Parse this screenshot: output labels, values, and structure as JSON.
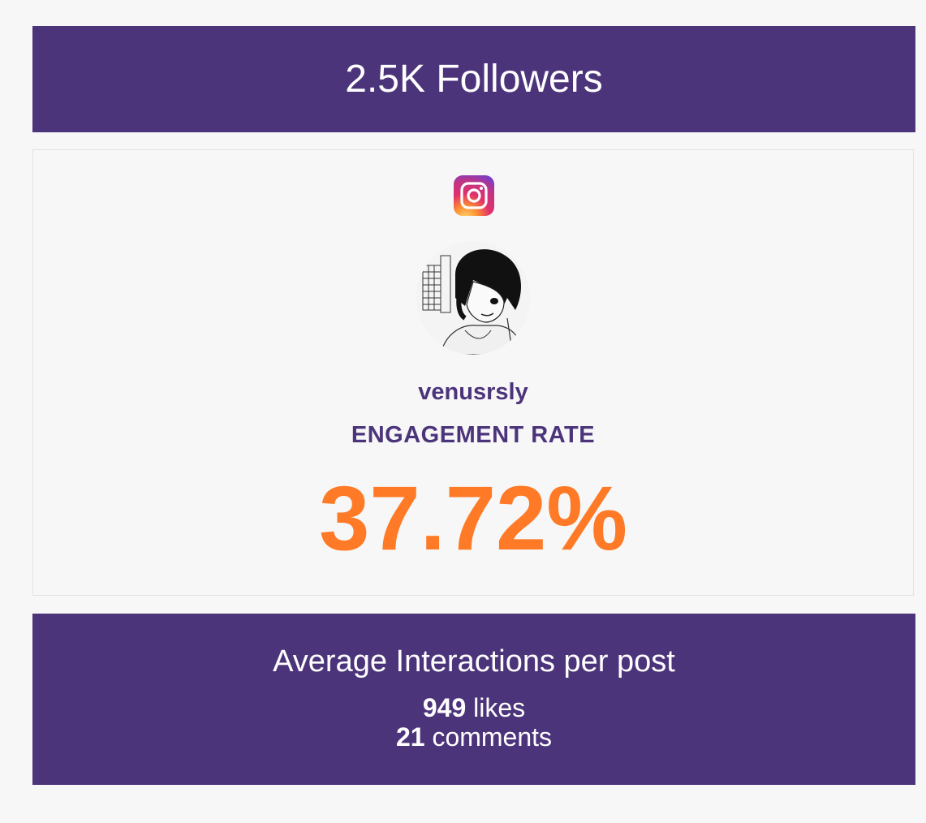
{
  "header": {
    "followers_text": "2.5K Followers"
  },
  "profile": {
    "platform_icon": "instagram-icon",
    "username": "venusrsly",
    "engagement_label": "ENGAGEMENT RATE",
    "engagement_value": "37.72%"
  },
  "interactions": {
    "title": "Average Interactions per post",
    "likes_count": "949",
    "likes_label": "likes",
    "comments_count": "21",
    "comments_label": "comments"
  },
  "colors": {
    "brand_purple": "#4c347b",
    "accent_orange": "#ff7a26",
    "background": "#f7f7f7"
  }
}
